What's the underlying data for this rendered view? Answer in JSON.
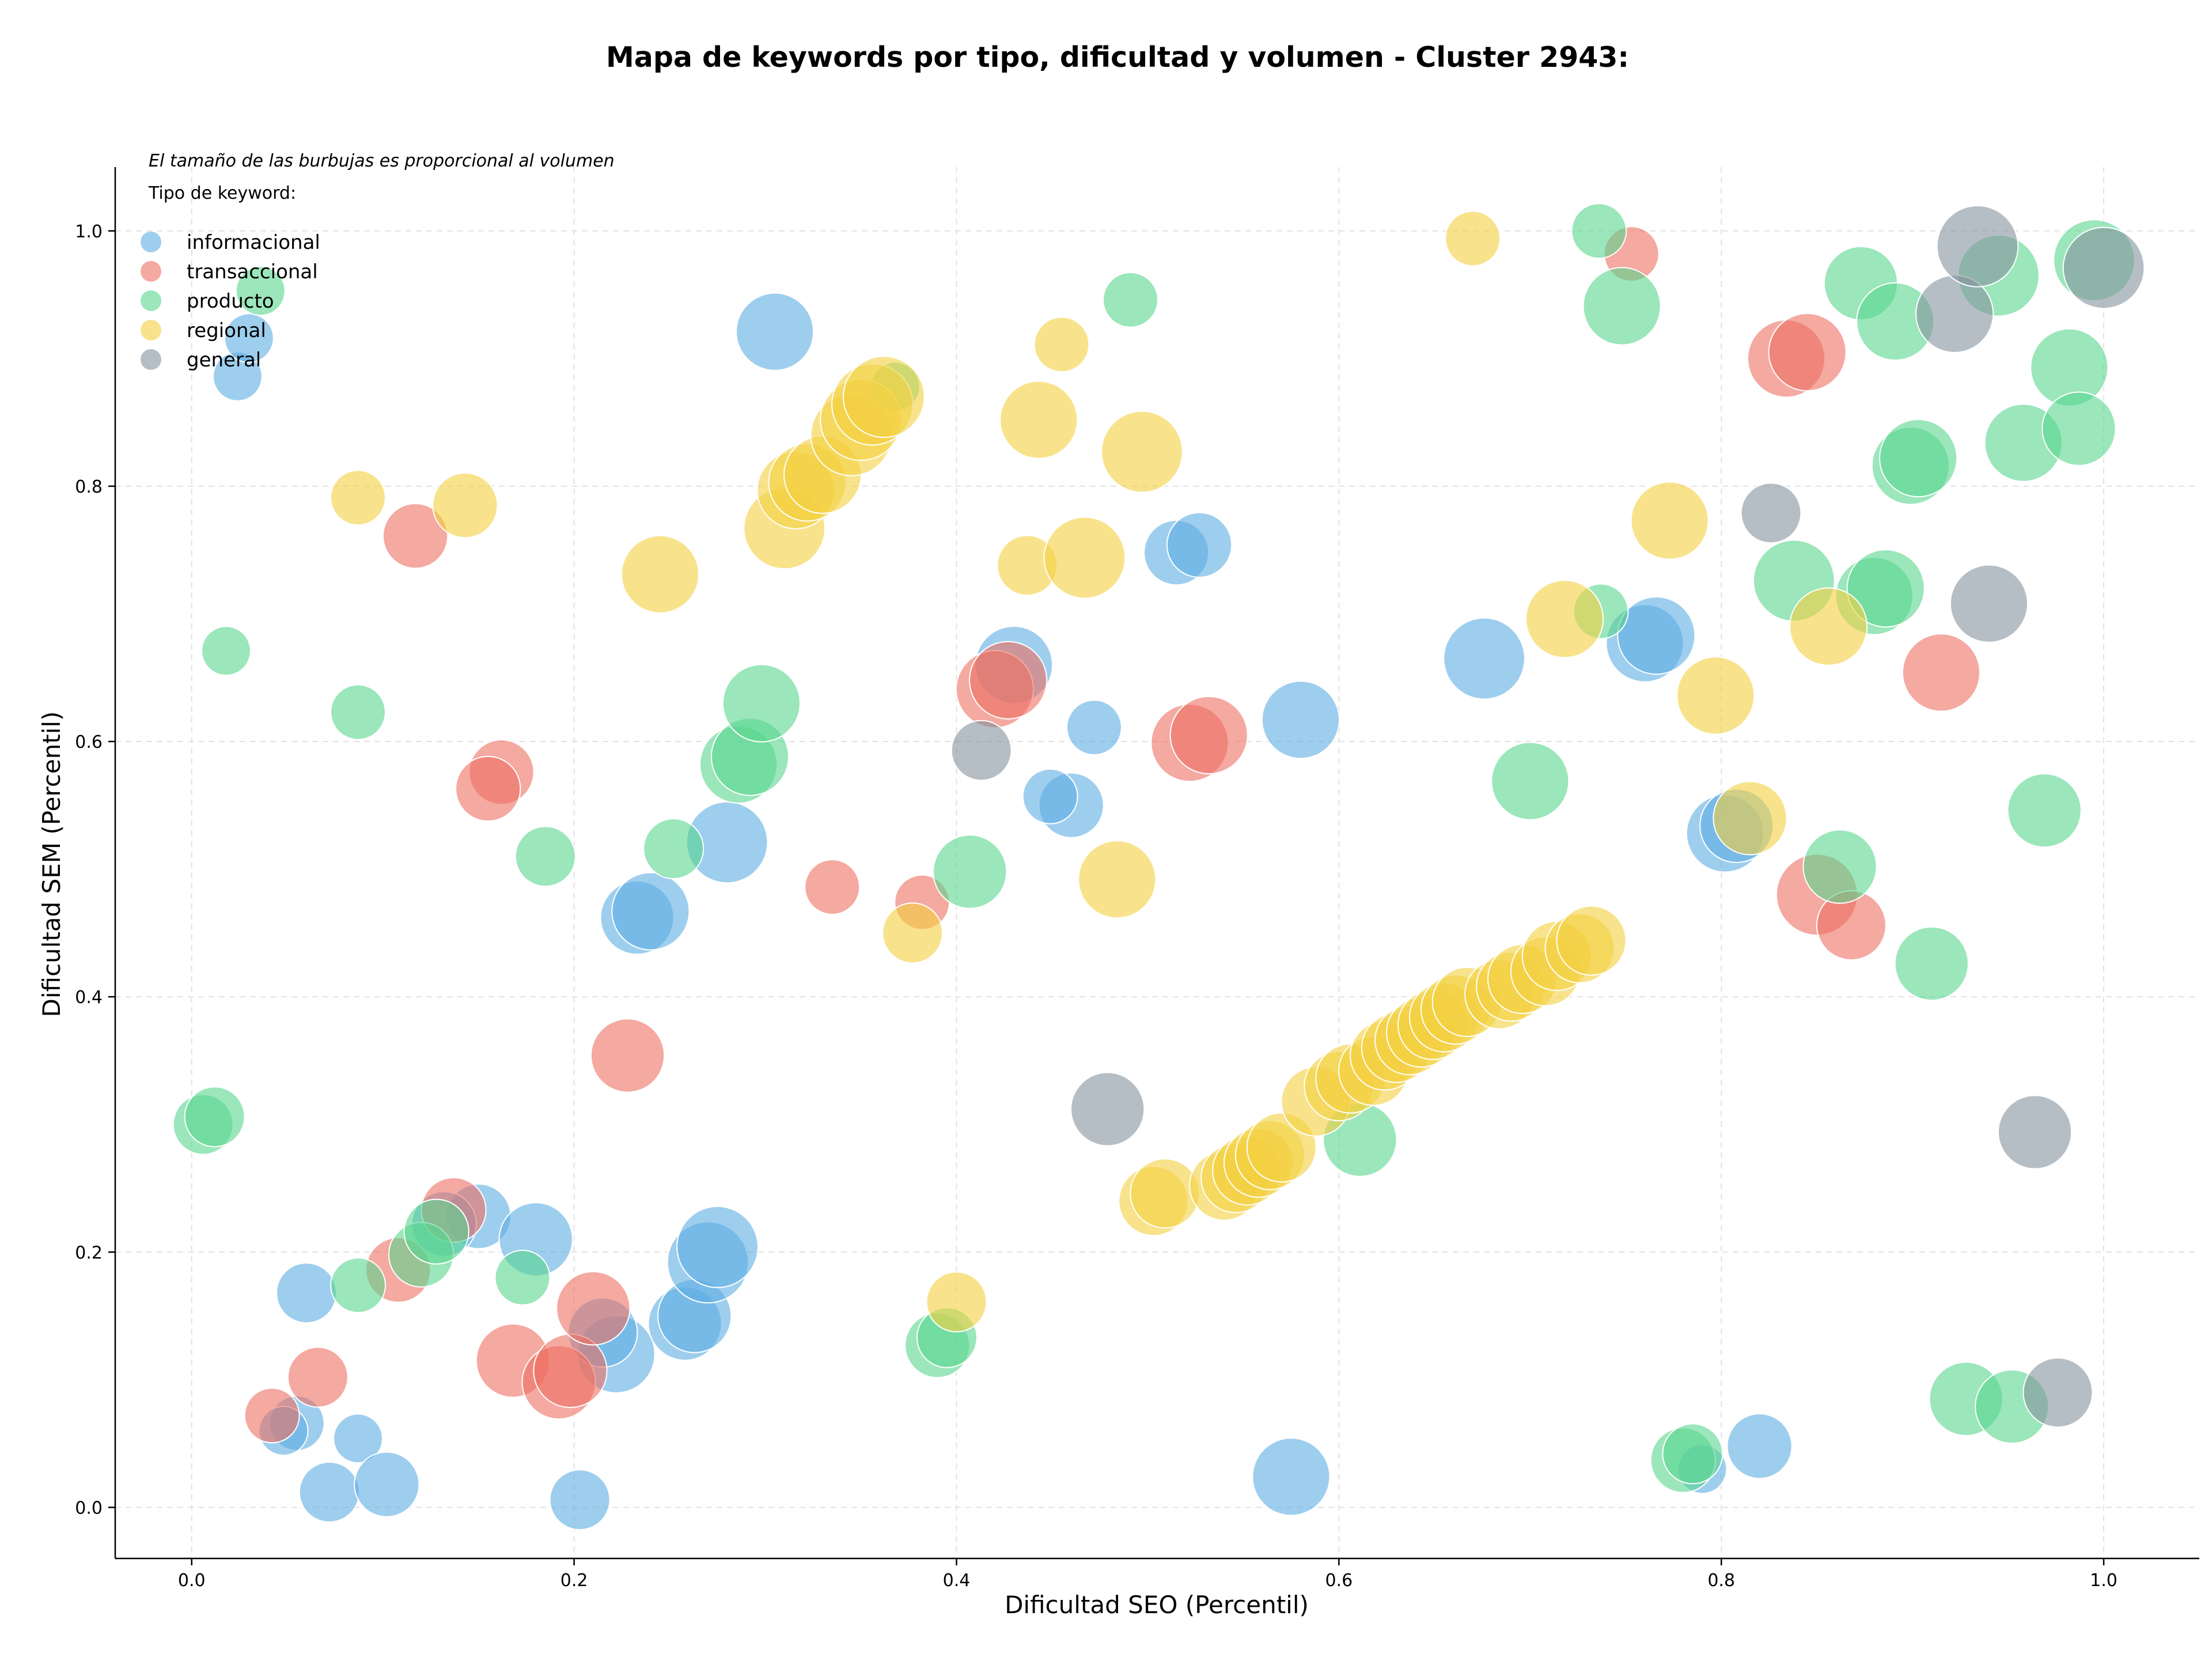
{
  "chart_data": {
    "type": "scatter",
    "title": "Mapa de keywords por tipo, dificultad y volumen - Cluster 2943:",
    "xlabel": "Dificultad SEO (Percentil)",
    "ylabel": "Dificultad SEM (Percentil)",
    "note": "El tamaño de las burbujas es proporcional al volumen",
    "legend_title": "Tipo de keyword:",
    "legend_position": "top-left",
    "grid": true,
    "xlim": [
      -0.04,
      1.05
    ],
    "ylim": [
      -0.04,
      1.05
    ],
    "xticks": [
      "0.0",
      "0.2",
      "0.4",
      "0.6",
      "0.8",
      "1.0"
    ],
    "yticks": [
      "0.0",
      "0.2",
      "0.4",
      "0.6",
      "0.8",
      "1.0"
    ],
    "series": [
      {
        "name": "informacional",
        "color": "#5dade2",
        "points": [
          [
            0.024,
            0.886,
            2
          ],
          [
            0.03,
            0.916,
            2
          ],
          [
            0.305,
            0.921,
            5
          ],
          [
            0.055,
            0.066,
            2.5
          ],
          [
            0.048,
            0.06,
            2
          ],
          [
            0.087,
            0.054,
            2
          ],
          [
            0.072,
            0.012,
            3
          ],
          [
            0.102,
            0.018,
            3.5
          ],
          [
            0.06,
            0.168,
            3
          ],
          [
            0.203,
            0.006,
            3
          ],
          [
            0.15,
            0.228,
            3.5
          ],
          [
            0.18,
            0.21,
            4.5
          ],
          [
            0.132,
            0.222,
            3.5
          ],
          [
            0.222,
            0.12,
            5
          ],
          [
            0.215,
            0.137,
            4
          ],
          [
            0.258,
            0.144,
            4.5
          ],
          [
            0.263,
            0.15,
            4.5
          ],
          [
            0.27,
            0.192,
            5.5
          ],
          [
            0.275,
            0.204,
            5.5
          ],
          [
            0.28,
            0.521,
            5.5
          ],
          [
            0.233,
            0.462,
            4.5
          ],
          [
            0.24,
            0.467,
            5
          ],
          [
            0.43,
            0.66,
            5
          ],
          [
            0.46,
            0.55,
            3.5
          ],
          [
            0.449,
            0.557,
            2.5
          ],
          [
            0.472,
            0.611,
            2.5
          ],
          [
            0.515,
            0.748,
            3.5
          ],
          [
            0.527,
            0.754,
            3.5
          ],
          [
            0.58,
            0.617,
            5
          ],
          [
            0.676,
            0.665,
            5.5
          ],
          [
            0.76,
            0.677,
            5
          ],
          [
            0.766,
            0.683,
            5
          ],
          [
            0.802,
            0.528,
            5
          ],
          [
            0.808,
            0.534,
            4.5
          ],
          [
            0.82,
            0.048,
            3.5
          ],
          [
            0.79,
            0.03,
            2
          ],
          [
            0.575,
            0.024,
            5
          ]
        ]
      },
      {
        "name": "transaccional",
        "color": "#ec7063",
        "points": [
          [
            0.117,
            0.761,
            3.5
          ],
          [
            0.162,
            0.576,
            3.5
          ],
          [
            0.155,
            0.563,
            3.5
          ],
          [
            0.228,
            0.354,
            4.5
          ],
          [
            0.137,
            0.233,
            3.5
          ],
          [
            0.108,
            0.186,
            3.5
          ],
          [
            0.066,
            0.102,
            3
          ],
          [
            0.042,
            0.072,
            2.5
          ],
          [
            0.168,
            0.115,
            4.5
          ],
          [
            0.192,
            0.098,
            4.5
          ],
          [
            0.198,
            0.107,
            4.5
          ],
          [
            0.21,
            0.156,
            4.5
          ],
          [
            0.335,
            0.486,
            2.5
          ],
          [
            0.382,
            0.474,
            2.5
          ],
          [
            0.42,
            0.641,
            5
          ],
          [
            0.427,
            0.648,
            5
          ],
          [
            0.522,
            0.599,
            5
          ],
          [
            0.532,
            0.605,
            5
          ],
          [
            0.753,
            0.982,
            2.5
          ],
          [
            0.834,
            0.9,
            5
          ],
          [
            0.845,
            0.905,
            5
          ],
          [
            0.85,
            0.48,
            5.5
          ],
          [
            0.868,
            0.456,
            4
          ],
          [
            0.915,
            0.654,
            5
          ]
        ]
      },
      {
        "name": "producto",
        "color": "#58d68d",
        "points": [
          [
            0.036,
            0.953,
            2
          ],
          [
            0.018,
            0.671,
            2
          ],
          [
            0.087,
            0.623,
            2.5
          ],
          [
            0.006,
            0.3,
            3
          ],
          [
            0.012,
            0.306,
            3
          ],
          [
            0.087,
            0.174,
            2.5
          ],
          [
            0.12,
            0.198,
            3.5
          ],
          [
            0.128,
            0.216,
            3.5
          ],
          [
            0.173,
            0.18,
            2.5
          ],
          [
            0.185,
            0.51,
            3
          ],
          [
            0.252,
            0.516,
            3
          ],
          [
            0.286,
            0.582,
            5
          ],
          [
            0.292,
            0.588,
            5
          ],
          [
            0.298,
            0.63,
            5
          ],
          [
            0.368,
            0.878,
            2
          ],
          [
            0.39,
            0.127,
            3.5
          ],
          [
            0.395,
            0.133,
            3
          ],
          [
            0.407,
            0.498,
            4.5
          ],
          [
            0.491,
            0.946,
            2.5
          ],
          [
            0.611,
            0.288,
            4.5
          ],
          [
            0.7,
            0.569,
            5
          ],
          [
            0.736,
            1.0,
            2.5
          ],
          [
            0.737,
            0.702,
            2.5
          ],
          [
            0.748,
            0.941,
            5
          ],
          [
            0.78,
            0.037,
            3.5
          ],
          [
            0.785,
            0.042,
            3
          ],
          [
            0.838,
            0.726,
            5.5
          ],
          [
            0.862,
            0.502,
            4.5
          ],
          [
            0.873,
            0.959,
            4.5
          ],
          [
            0.88,
            0.714,
            5
          ],
          [
            0.886,
            0.72,
            5
          ],
          [
            0.891,
            0.929,
            5
          ],
          [
            0.899,
            0.816,
            5
          ],
          [
            0.903,
            0.822,
            5
          ],
          [
            0.91,
            0.426,
            4.5
          ],
          [
            0.928,
            0.085,
            4.5
          ],
          [
            0.945,
            0.965,
            5.5
          ],
          [
            0.952,
            0.079,
            4.5
          ],
          [
            0.958,
            0.834,
            5
          ],
          [
            0.969,
            0.546,
            4.5
          ],
          [
            0.982,
            0.893,
            5
          ],
          [
            0.987,
            0.845,
            4.5
          ],
          [
            0.995,
            0.977,
            5.5
          ]
        ]
      },
      {
        "name": "regional",
        "color": "#f4d03f",
        "points": [
          [
            0.087,
            0.791,
            2.5
          ],
          [
            0.143,
            0.785,
            3.5
          ],
          [
            0.245,
            0.731,
            5
          ],
          [
            0.31,
            0.767,
            5.5
          ],
          [
            0.316,
            0.797,
            5
          ],
          [
            0.322,
            0.803,
            5
          ],
          [
            0.33,
            0.809,
            5
          ],
          [
            0.345,
            0.84,
            5.5
          ],
          [
            0.35,
            0.852,
            5.5
          ],
          [
            0.356,
            0.864,
            5.5
          ],
          [
            0.362,
            0.87,
            5.5
          ],
          [
            0.377,
            0.45,
            3
          ],
          [
            0.4,
            0.161,
            3
          ],
          [
            0.437,
            0.738,
            3
          ],
          [
            0.443,
            0.852,
            5
          ],
          [
            0.455,
            0.911,
            2.5
          ],
          [
            0.467,
            0.744,
            5.5
          ],
          [
            0.484,
            0.492,
            5
          ],
          [
            0.497,
            0.827,
            5.5
          ],
          [
            0.503,
            0.24,
            4
          ],
          [
            0.509,
            0.246,
            4
          ],
          [
            0.54,
            0.252,
            4
          ],
          [
            0.546,
            0.258,
            4
          ],
          [
            0.552,
            0.264,
            4
          ],
          [
            0.558,
            0.27,
            4
          ],
          [
            0.564,
            0.276,
            4
          ],
          [
            0.57,
            0.282,
            4
          ],
          [
            0.588,
            0.318,
            4
          ],
          [
            0.6,
            0.33,
            4
          ],
          [
            0.606,
            0.336,
            4
          ],
          [
            0.618,
            0.342,
            4
          ],
          [
            0.624,
            0.354,
            4
          ],
          [
            0.63,
            0.36,
            4
          ],
          [
            0.637,
            0.366,
            4
          ],
          [
            0.643,
            0.372,
            4
          ],
          [
            0.649,
            0.378,
            4
          ],
          [
            0.655,
            0.384,
            4
          ],
          [
            0.661,
            0.39,
            4
          ],
          [
            0.667,
            0.396,
            4
          ],
          [
            0.684,
            0.402,
            4
          ],
          [
            0.69,
            0.408,
            4
          ],
          [
            0.696,
            0.414,
            4
          ],
          [
            0.708,
            0.42,
            4
          ],
          [
            0.714,
            0.432,
            4
          ],
          [
            0.726,
            0.438,
            4
          ],
          [
            0.732,
            0.444,
            4
          ],
          [
            0.67,
            0.994,
            2.5
          ],
          [
            0.718,
            0.696,
            5
          ],
          [
            0.773,
            0.773,
            5
          ],
          [
            0.797,
            0.636,
            5
          ],
          [
            0.815,
            0.54,
            4.5
          ],
          [
            0.856,
            0.69,
            5
          ]
        ]
      },
      {
        "name": "general",
        "color": "#85929e",
        "points": [
          [
            0.413,
            0.593,
            3
          ],
          [
            0.479,
            0.312,
            4.5
          ],
          [
            0.826,
            0.779,
            3
          ],
          [
            0.922,
            0.935,
            5
          ],
          [
            0.934,
            0.988,
            5.5
          ],
          [
            0.94,
            0.708,
            5
          ],
          [
            0.964,
            0.294,
            4.5
          ],
          [
            0.976,
            0.09,
            4
          ],
          [
            1.0,
            0.971,
            5.5
          ]
        ]
      }
    ]
  }
}
